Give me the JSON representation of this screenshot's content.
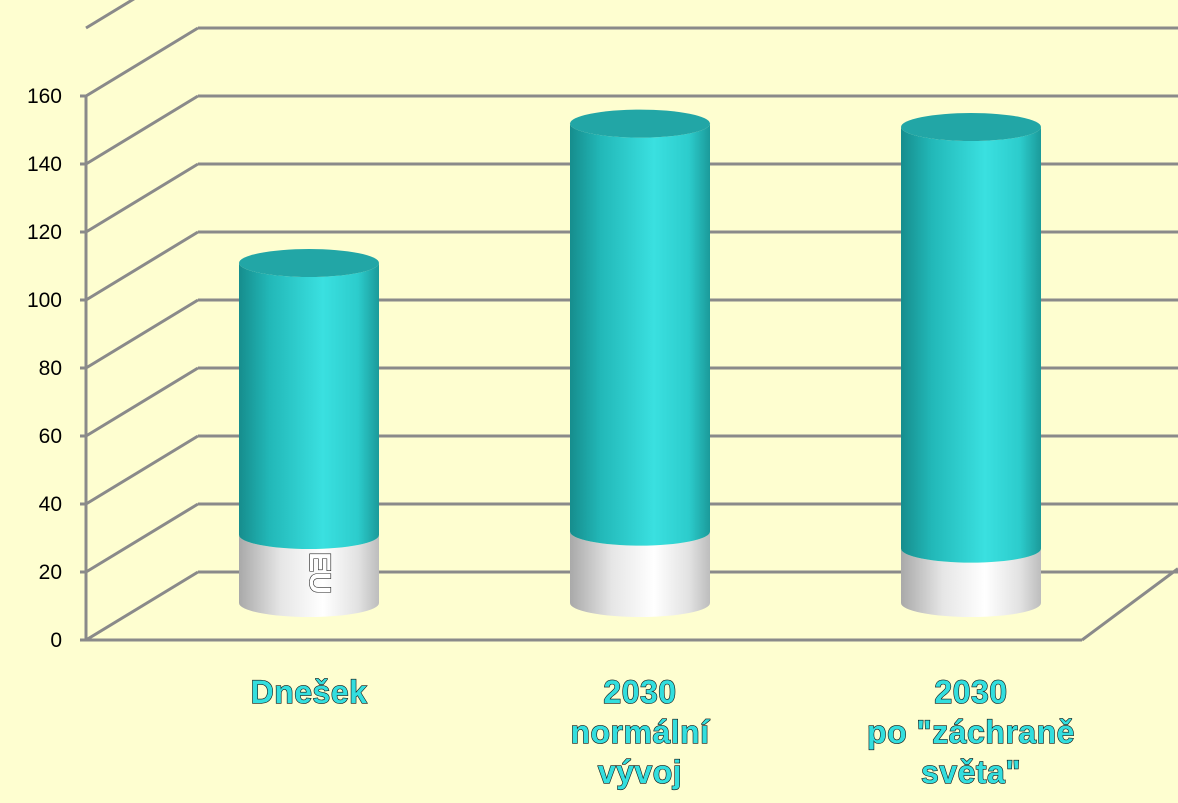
{
  "chart_data": {
    "type": "bar",
    "style": "3d-stacked-cylinder",
    "categories": [
      [
        "Dnešek"
      ],
      [
        "2030",
        "normální",
        "vývoj"
      ],
      [
        "2030",
        "po \"záchraně",
        "světa\""
      ]
    ],
    "series": [
      {
        "name": "EU",
        "values": [
          20,
          21,
          16
        ],
        "color": "#f6f6f6"
      },
      {
        "values": [
          80,
          120,
          124
        ],
        "color": "#2fd6d6"
      }
    ],
    "y_ticks": [
      "0",
      "20",
      "40",
      "60",
      "80",
      "100",
      "120",
      "140",
      "160"
    ],
    "ylim": [
      0,
      180
    ],
    "grid": true,
    "title": "",
    "xlabel": "",
    "ylabel": ""
  },
  "colors": {
    "background": "#fefed0",
    "gridline": "#8a8a8a",
    "label": "#33dede"
  }
}
